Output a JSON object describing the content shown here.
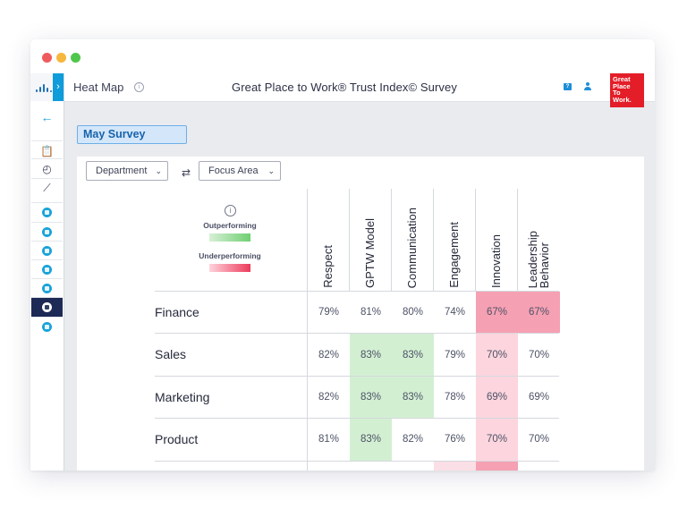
{
  "header": {
    "page_name": "Heat Map",
    "info_glyph": "i",
    "survey_title": "Great Place to Work® Trust Index© Survey",
    "help_glyph": "?",
    "brand_lines": [
      "Great",
      "Place",
      "To",
      "Work."
    ]
  },
  "sidebar": {
    "expand_glyph": "›",
    "back_glyph": "←",
    "items": [
      {
        "name": "clipboard-icon",
        "glyph": "📋",
        "active": false
      },
      {
        "name": "clock-check-icon",
        "glyph": "◴",
        "active": false
      },
      {
        "name": "chart-icon",
        "glyph": "⟋",
        "active": false
      },
      {
        "name": "list-icon",
        "active": false
      },
      {
        "name": "layers-icon",
        "active": false
      },
      {
        "name": "tasks-icon",
        "active": false
      },
      {
        "name": "people-icon",
        "active": false
      },
      {
        "name": "message-icon",
        "active": false
      },
      {
        "name": "heatmap-icon",
        "active": true
      },
      {
        "name": "profile-icon",
        "active": false
      }
    ]
  },
  "survey_chip": "May Survey",
  "controls": {
    "group_by": "Department",
    "focus": "Focus Area",
    "swap_glyph": "⇄",
    "chevron": "⌄"
  },
  "legend": {
    "info_glyph": "i",
    "outperforming": "Outperforming",
    "underperforming": "Underperforming",
    "colors": {
      "out_from": "#d8f0d6",
      "out_to": "#6fcf72",
      "under_from": "#ffd3dc",
      "under_to": "#ec3a5c"
    }
  },
  "columns": [
    "Respect",
    "GPTW Model",
    "Communication",
    "Engagement",
    "Innovation",
    "Leadership\nBehavior"
  ],
  "rows": [
    {
      "label": "Finance",
      "cells": [
        {
          "value": "79%",
          "tone": "none"
        },
        {
          "value": "81%",
          "tone": "none"
        },
        {
          "value": "80%",
          "tone": "none"
        },
        {
          "value": "74%",
          "tone": "none"
        },
        {
          "value": "67%",
          "tone": "red-strong"
        },
        {
          "value": "67%",
          "tone": "red-strong"
        }
      ]
    },
    {
      "label": "Sales",
      "cells": [
        {
          "value": "82%",
          "tone": "none"
        },
        {
          "value": "83%",
          "tone": "green"
        },
        {
          "value": "83%",
          "tone": "green"
        },
        {
          "value": "79%",
          "tone": "none"
        },
        {
          "value": "70%",
          "tone": "red-light"
        },
        {
          "value": "70%",
          "tone": "none"
        }
      ]
    },
    {
      "label": "Marketing",
      "cells": [
        {
          "value": "82%",
          "tone": "none"
        },
        {
          "value": "83%",
          "tone": "green"
        },
        {
          "value": "83%",
          "tone": "green"
        },
        {
          "value": "78%",
          "tone": "none"
        },
        {
          "value": "69%",
          "tone": "red-light"
        },
        {
          "value": "69%",
          "tone": "none"
        }
      ]
    },
    {
      "label": "Product",
      "cells": [
        {
          "value": "81%",
          "tone": "none"
        },
        {
          "value": "83%",
          "tone": "green"
        },
        {
          "value": "82%",
          "tone": "none"
        },
        {
          "value": "76%",
          "tone": "none"
        },
        {
          "value": "70%",
          "tone": "red-light"
        },
        {
          "value": "70%",
          "tone": "none"
        }
      ]
    },
    {
      "label": "",
      "cells": [
        {
          "value": "",
          "tone": "none"
        },
        {
          "value": "",
          "tone": "none"
        },
        {
          "value": "",
          "tone": "none"
        },
        {
          "value": "",
          "tone": "red-faint"
        },
        {
          "value": "",
          "tone": "red-strong"
        },
        {
          "value": "",
          "tone": "none"
        }
      ]
    }
  ],
  "tone_colors": {
    "none": "#ffffff",
    "green": "#d2efd2",
    "red-light": "#fcd5de",
    "red-strong": "#f6a0b3",
    "red-faint": "#fbdfe6"
  }
}
